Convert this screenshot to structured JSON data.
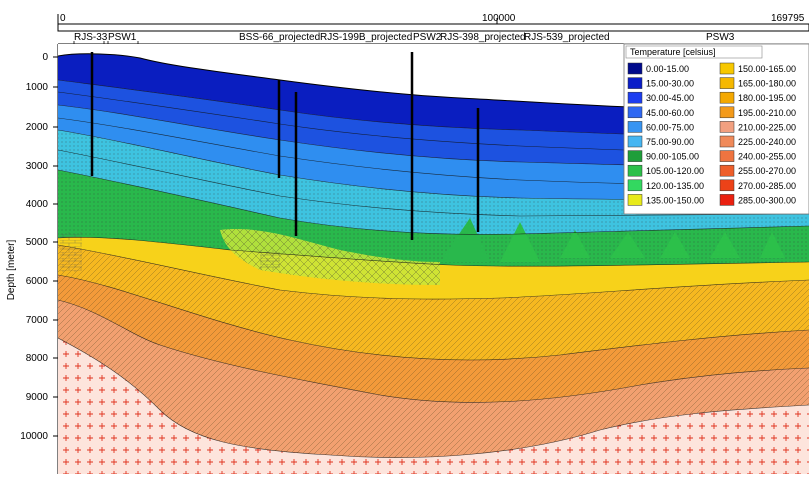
{
  "x_axis": {
    "ticks": [
      "0",
      "100000",
      "169795"
    ]
  },
  "y_axis": {
    "label": "Depth [meter]",
    "ticks": [
      "0",
      "1000",
      "2000",
      "3000",
      "4000",
      "5000",
      "6000",
      "7000",
      "8000",
      "9000",
      "10000"
    ]
  },
  "wells": [
    "RJS-33",
    "PSW1",
    "BSS-66_projected",
    "RJS-199B_projected",
    "PSW2",
    "RJS-398_projected",
    "RJS-539_projected",
    "PSW3"
  ],
  "legend": {
    "title": "Temperature [celsius]",
    "items": [
      {
        "label": "0.00-15.00",
        "color": "#000a8c"
      },
      {
        "label": "15.00-30.00",
        "color": "#0a1dc8"
      },
      {
        "label": "30.00-45.00",
        "color": "#1c3df0"
      },
      {
        "label": "45.00-60.00",
        "color": "#2f68f2"
      },
      {
        "label": "60.00-75.00",
        "color": "#3794f2"
      },
      {
        "label": "75.00-90.00",
        "color": "#46b6f2"
      },
      {
        "label": "90.00-105.00",
        "color": "#1f9e3a"
      },
      {
        "label": "105.00-120.00",
        "color": "#2cc04a"
      },
      {
        "label": "120.00-135.00",
        "color": "#33d860"
      },
      {
        "label": "135.00-150.00",
        "color": "#e8ea1a"
      },
      {
        "label": "150.00-165.00",
        "color": "#f7c800"
      },
      {
        "label": "165.00-180.00",
        "color": "#f5b800"
      },
      {
        "label": "180.00-195.00",
        "color": "#f4a800"
      },
      {
        "label": "195.00-210.00",
        "color": "#f39a1a"
      },
      {
        "label": "210.00-225.00",
        "color": "#f2a080"
      },
      {
        "label": "225.00-240.00",
        "color": "#f08a5a"
      },
      {
        "label": "240.00-255.00",
        "color": "#ef7440"
      },
      {
        "label": "255.00-270.00",
        "color": "#ee5e2a"
      },
      {
        "label": "270.00-285.00",
        "color": "#ec4218"
      },
      {
        "label": "285.00-300.00",
        "color": "#ea2010"
      }
    ]
  }
}
